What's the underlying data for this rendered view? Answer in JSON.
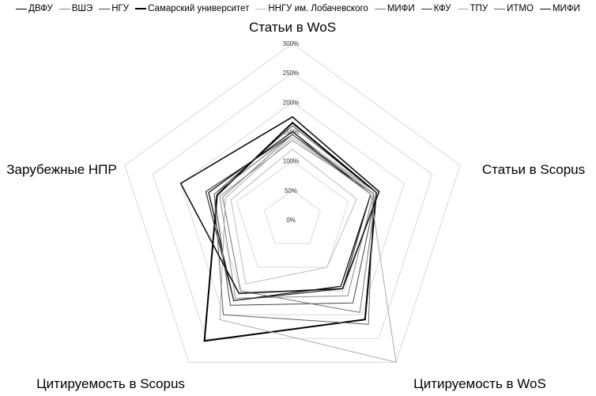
{
  "chart_data": {
    "type": "radar",
    "axes": [
      "Статьи в WoS",
      "Статьи в Scopus",
      "Цитируемость в WoS",
      "Цитируемость в Scopus",
      "Зарубежные НПР"
    ],
    "ticks": [
      "0%",
      "50%",
      "100%",
      "150%",
      "200%",
      "250%",
      "300%"
    ],
    "rmax": 300,
    "grid": true,
    "legend_position": "top",
    "series": [
      {
        "name": "ДВФУ",
        "color": "#000000",
        "width": 1.2,
        "values": [
          150,
          140,
          140,
          170,
          150
        ]
      },
      {
        "name": "ВШЭ",
        "color": "#888888",
        "width": 1.0,
        "values": [
          135,
          145,
          160,
          165,
          130
        ]
      },
      {
        "name": "НГУ",
        "color": "#444444",
        "width": 1.0,
        "values": [
          160,
          150,
          175,
          180,
          140
        ]
      },
      {
        "name": "Самарский университет",
        "color": "#000000",
        "width": 2.0,
        "values": [
          165,
          150,
          210,
          255,
          135
        ]
      },
      {
        "name": "ННГУ им. Лобачевского",
        "color": "#bbbbbb",
        "width": 1.0,
        "values": [
          120,
          115,
          100,
          135,
          110
        ]
      },
      {
        "name": "МИФИ",
        "color": "#777777",
        "width": 1.0,
        "values": [
          145,
          150,
          195,
          150,
          125
        ]
      },
      {
        "name": "КФУ",
        "color": "#333333",
        "width": 1.2,
        "values": [
          145,
          140,
          145,
          170,
          155
        ]
      },
      {
        "name": "ТПУ",
        "color": "#aaaaaa",
        "width": 1.0,
        "values": [
          140,
          140,
          300,
          210,
          120
        ]
      },
      {
        "name": "ИТМО",
        "color": "#666666",
        "width": 1.0,
        "values": [
          145,
          145,
          220,
          200,
          140
        ]
      },
      {
        "name": "МИФИ",
        "color": "#111111",
        "width": 1.6,
        "values": [
          175,
          155,
          145,
          155,
          200
        ]
      }
    ]
  }
}
